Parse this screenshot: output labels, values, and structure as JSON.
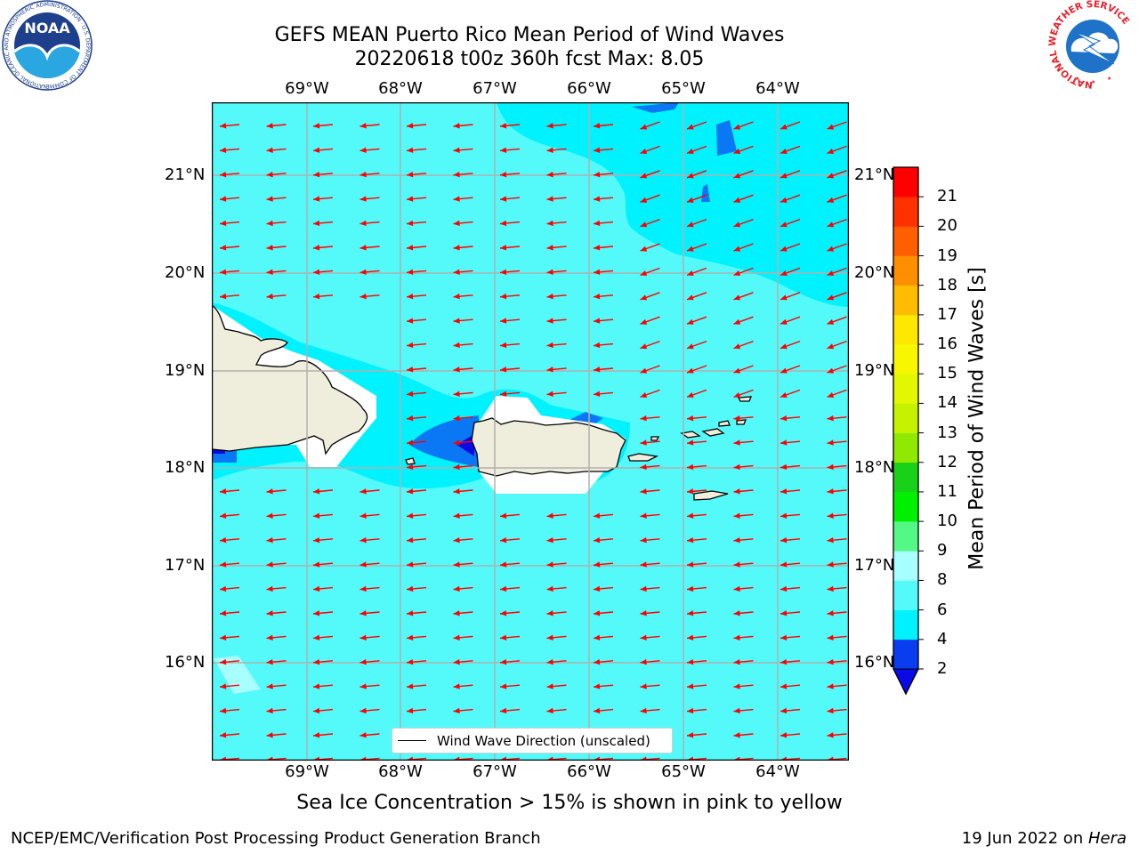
{
  "title": {
    "line1": "GEFS MEAN Puerto Rico Mean Period of Wind Waves",
    "line2": "20220618 t00z 360h fcst   Max: 8.05"
  },
  "axes": {
    "longitude_labels": [
      "69°W",
      "68°W",
      "67°W",
      "66°W",
      "65°W",
      "64°W"
    ],
    "latitude_labels": [
      "21°N",
      "20°N",
      "19°N",
      "18°N",
      "17°N",
      "16°N"
    ]
  },
  "colorbar": {
    "title": "Mean Period of Wind Waves [s]",
    "ticks": [
      "2",
      "4",
      "6",
      "8",
      "9",
      "10",
      "11",
      "12",
      "13",
      "14",
      "15",
      "16",
      "17",
      "18",
      "19",
      "20",
      "21"
    ],
    "colors": [
      "#0a3cf0",
      "#00f2ff",
      "#54fafa",
      "#a8ffff",
      "#54f887",
      "#00f100",
      "#1ad11a",
      "#8fe900",
      "#c6f200",
      "#e3f700",
      "#f8f700",
      "#ffe800",
      "#ffbc00",
      "#ff8f00",
      "#ff5f00",
      "#ff3100",
      "#ff0000"
    ],
    "under_color": "#0a0ae6"
  },
  "legend": {
    "label": "Wind Wave Direction (unscaled)"
  },
  "note": "Sea Ice Concentration > 15% is shown in pink to yellow",
  "footer": {
    "left": "NCEP/EMC/Verification Post Processing Product Generation Branch",
    "date": "19 Jun 2022 on ",
    "host": "Hera"
  },
  "logos": {
    "noaa_text": "NOAA",
    "noaa_ring": "NATIONAL OCEANIC AND ATMOSPHERIC ADMINISTRATION · U.S. DEPARTMENT OF COMMERCE",
    "nws_ring": "NATIONAL WEATHER SERVICE"
  },
  "map_colors": {
    "ocean": "#54fafa",
    "lighter": "#a8ffff",
    "cyan": "#00f2ff",
    "blue": "#0a78f5",
    "deep": "#0a0ae6",
    "land": "#efeddc",
    "arrow": "#ff0000",
    "grid": "#b0b0b0"
  }
}
